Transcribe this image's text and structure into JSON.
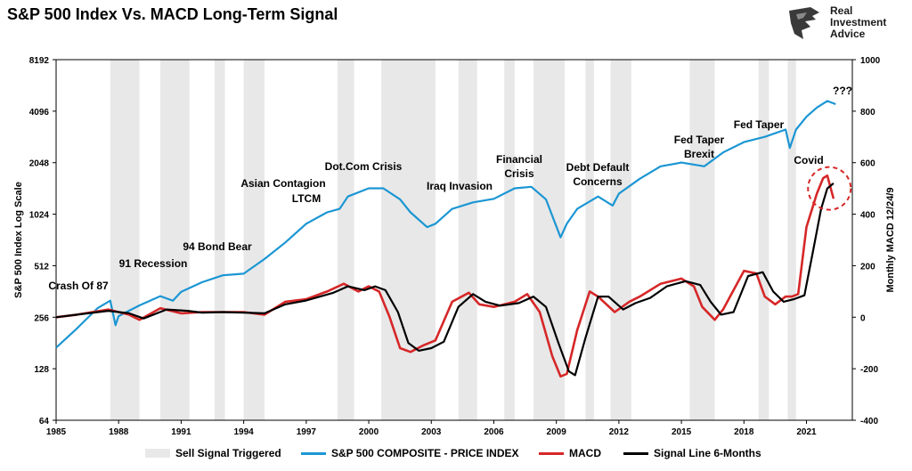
{
  "header": {
    "title": "S&P 500 Index Vs. MACD Long-Term Signal"
  },
  "brand": {
    "line1": "Real",
    "line2": "Investment",
    "line3": "Advice"
  },
  "legend": {
    "sell": "Sell Signal Triggered",
    "spx": "S&P 500 COMPOSITE - PRICE INDEX",
    "macd": "MACD",
    "signal": "Signal Line 6-Months"
  },
  "colors": {
    "spx": "#1b96d3",
    "macd": "#d62728",
    "signal": "#000000",
    "shade": "#e8e8e8"
  },
  "chart_data": {
    "type": "line",
    "title": "S&P 500 Index Vs. MACD Long-Term Signal",
    "ylabel_left": "S&P 500 Index Log Scale",
    "ylabel_right": "Monthly MACD 12/24/9",
    "left_axis": {
      "scale": "log2",
      "range": [
        64,
        8192
      ],
      "ticks": [
        64,
        128,
        256,
        512,
        1024,
        2048,
        4096,
        8192
      ]
    },
    "right_axis": {
      "range": [
        -400,
        1000
      ],
      "ticks": [
        -400,
        -200,
        0,
        200,
        400,
        600,
        800,
        1000
      ]
    },
    "x_range": [
      1985,
      2023.2
    ],
    "x_ticks": [
      "1985",
      "1988",
      "1991",
      "1994",
      "1997",
      "2000",
      "2003",
      "2006",
      "2009",
      "2012",
      "2015",
      "2018",
      "2021"
    ],
    "sell_signals": [
      [
        1987.6,
        1989.0
      ],
      [
        1990.0,
        1991.4
      ],
      [
        1992.6,
        1993.1
      ],
      [
        1994.0,
        1995.0
      ],
      [
        1998.5,
        1999.3
      ],
      [
        2000.6,
        2003.2
      ],
      [
        2004.3,
        2005.2
      ],
      [
        2006.5,
        2007.0
      ],
      [
        2007.9,
        2009.4
      ],
      [
        2010.4,
        2010.8
      ],
      [
        2011.6,
        2012.6
      ],
      [
        2015.4,
        2016.6
      ],
      [
        2018.7,
        2019.2
      ],
      [
        2020.1,
        2020.5
      ]
    ],
    "series": [
      {
        "name": "S&P 500 COMPOSITE - PRICE INDEX",
        "axis": "left",
        "x": [
          1985,
          1986,
          1987.0,
          1987.6,
          1987.85,
          1988,
          1989,
          1990,
          1990.6,
          1991,
          1992,
          1993,
          1994,
          1995,
          1996,
          1997,
          1998,
          1998.6,
          1999,
          2000,
          2000.7,
          2001.5,
          2002,
          2002.8,
          2003.2,
          2004,
          2005,
          2006,
          2007,
          2007.8,
          2008.5,
          2009.2,
          2009.5,
          2010,
          2011,
          2011.7,
          2012,
          2013,
          2014,
          2015,
          2016.1,
          2017,
          2018,
          2019,
          2020.0,
          2020.2,
          2020.5,
          2021,
          2021.5,
          2022.0,
          2022.4
        ],
        "y": [
          170,
          220,
          290,
          320,
          230,
          260,
          300,
          340,
          320,
          360,
          410,
          450,
          460,
          560,
          700,
          900,
          1050,
          1100,
          1300,
          1450,
          1450,
          1250,
          1050,
          860,
          900,
          1100,
          1200,
          1260,
          1450,
          1480,
          1250,
          750,
          900,
          1100,
          1300,
          1150,
          1350,
          1650,
          1950,
          2050,
          1950,
          2350,
          2700,
          2900,
          3200,
          2500,
          3200,
          3800,
          4300,
          4700,
          4500
        ]
      },
      {
        "name": "MACD",
        "axis": "right",
        "x": [
          1985,
          1986,
          1987.5,
          1988.5,
          1989,
          1990,
          1991,
          1992,
          1993,
          1994,
          1995,
          1996,
          1997,
          1998,
          1998.8,
          1999.5,
          2000,
          2000.5,
          2001,
          2001.5,
          2002,
          2002.6,
          2003.2,
          2004,
          2004.8,
          2005.3,
          2006,
          2007,
          2007.6,
          2008.2,
          2008.8,
          2009.2,
          2009.5,
          2010,
          2010.6,
          2011,
          2011.8,
          2012.5,
          2013,
          2014,
          2015,
          2015.6,
          2016,
          2016.6,
          2017,
          2018,
          2018.6,
          2019,
          2019.5,
          2020,
          2020.3,
          2020.6,
          2021,
          2021.5,
          2021.8,
          2022.0,
          2022.3
        ],
        "y": [
          0,
          10,
          30,
          10,
          -10,
          35,
          15,
          20,
          20,
          20,
          10,
          60,
          70,
          100,
          130,
          100,
          120,
          100,
          0,
          -120,
          -135,
          -110,
          -90,
          60,
          95,
          50,
          40,
          60,
          90,
          20,
          -150,
          -230,
          -220,
          -50,
          100,
          80,
          20,
          60,
          80,
          130,
          150,
          120,
          40,
          -10,
          30,
          180,
          170,
          80,
          50,
          80,
          80,
          90,
          350,
          480,
          540,
          550,
          460
        ]
      },
      {
        "name": "Signal Line 6-Months",
        "axis": "right",
        "x": [
          1985,
          1986,
          1987.5,
          1988.5,
          1989.2,
          1990.3,
          1991.3,
          1992,
          1993,
          1994,
          1995,
          1996,
          1997,
          1998.3,
          1999,
          1999.8,
          2000.3,
          2000.8,
          2001.4,
          2001.9,
          2002.4,
          2003.0,
          2003.6,
          2004.3,
          2005.0,
          2005.6,
          2006.3,
          2007.2,
          2007.9,
          2008.5,
          2009.1,
          2009.6,
          2009.9,
          2010.4,
          2011.0,
          2011.5,
          2012.2,
          2012.8,
          2013.5,
          2014.3,
          2015.2,
          2015.9,
          2016.4,
          2016.9,
          2017.5,
          2018.2,
          2018.9,
          2019.4,
          2019.9,
          2020.4,
          2020.9,
          2021.3,
          2021.7,
          2022.0,
          2022.3
        ],
        "y": [
          0,
          10,
          25,
          15,
          -5,
          30,
          25,
          18,
          20,
          18,
          15,
          50,
          65,
          95,
          120,
          105,
          120,
          105,
          20,
          -100,
          -130,
          -120,
          -95,
          40,
          90,
          60,
          45,
          55,
          80,
          40,
          -100,
          -210,
          -225,
          -80,
          80,
          80,
          30,
          55,
          75,
          120,
          140,
          125,
          60,
          10,
          20,
          160,
          175,
          100,
          60,
          70,
          85,
          250,
          420,
          500,
          520
        ]
      }
    ],
    "annotations": [
      "Crash Of 87",
      "91 Recession",
      "94 Bond Bear",
      "Asian Contagion",
      "LTCM",
      "Dot.Com Crisis",
      "Iraq Invasion",
      "Financial",
      "Crisis",
      "Debt Default",
      "Concerns",
      "Fed Taper",
      "Brexit",
      "Fed Taper",
      "Covid",
      "???"
    ]
  }
}
